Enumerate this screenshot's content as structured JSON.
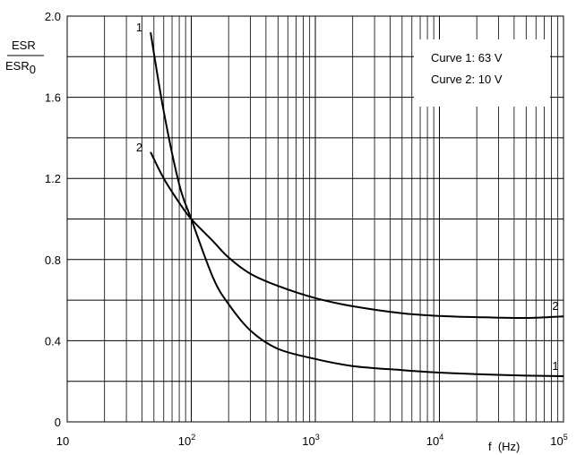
{
  "chart_data": {
    "type": "line",
    "title": "",
    "xlabel": "f  (Hz)",
    "ylabel_numerator": "ESR",
    "ylabel_denominator": "ESR",
    "ylabel_denominator_sub": "0",
    "xscale": "log",
    "xlim": [
      10,
      100000
    ],
    "ylim": [
      0,
      2.0
    ],
    "grid": true,
    "x_ticks": [
      {
        "base": "10",
        "exp": ""
      },
      {
        "base": "10",
        "exp": "2"
      },
      {
        "base": "10",
        "exp": "3"
      },
      {
        "base": "10",
        "exp": "4"
      },
      {
        "base": "10",
        "exp": "5"
      }
    ],
    "y_ticks": [
      "0",
      "0.4",
      "0.8",
      "1.2",
      "1.6",
      "2.0"
    ],
    "legend": {
      "placement": "top-right",
      "lines": [
        "Curve 1: 63 V",
        "Curve 2: 10 V"
      ]
    },
    "series": [
      {
        "name": "1",
        "label_start": "1",
        "label_end": "1",
        "x": [
          47,
          60,
          80,
          100,
          150,
          200,
          300,
          500,
          1000,
          2000,
          5000,
          10000,
          20000,
          50000,
          100000
        ],
        "y": [
          1.92,
          1.53,
          1.17,
          1.0,
          0.71,
          0.58,
          0.45,
          0.36,
          0.31,
          0.275,
          0.255,
          0.243,
          0.235,
          0.228,
          0.225
        ]
      },
      {
        "name": "2",
        "label_start": "2",
        "label_end": "2",
        "x": [
          47,
          60,
          80,
          100,
          150,
          200,
          300,
          500,
          1000,
          2000,
          5000,
          10000,
          20000,
          50000,
          100000
        ],
        "y": [
          1.33,
          1.2,
          1.08,
          1.0,
          0.89,
          0.81,
          0.73,
          0.67,
          0.61,
          0.57,
          0.535,
          0.522,
          0.516,
          0.512,
          0.52
        ]
      }
    ]
  }
}
